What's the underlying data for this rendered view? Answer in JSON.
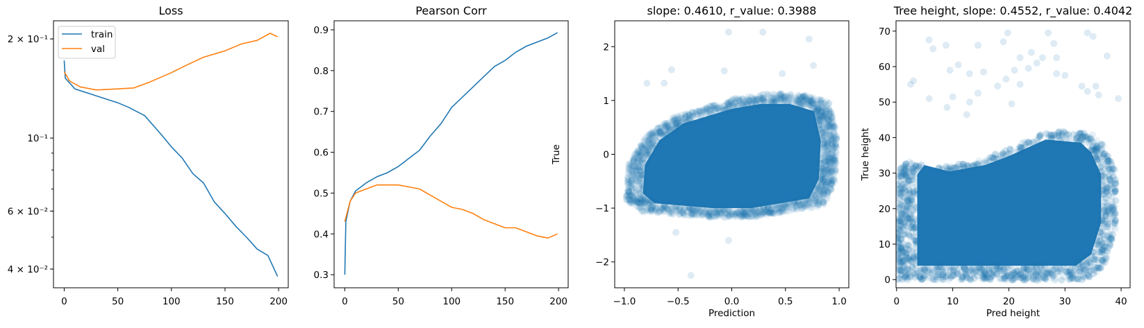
{
  "colors": {
    "train": "#1f77b4",
    "val": "#ff7f0e",
    "scatter": "#1f77b4"
  },
  "chart_data": [
    {
      "type": "line",
      "title": "Loss",
      "xlabel": "",
      "ylabel": "",
      "yscale": "log",
      "xlim": [
        -10,
        209
      ],
      "ylim": [
        0.0351,
        0.227
      ],
      "xticks": [
        0,
        50,
        100,
        150,
        200
      ],
      "xtick_labels": [
        "0",
        "50",
        "100",
        "150",
        "200"
      ],
      "yticks": [
        0.2,
        0.1,
        0.06,
        0.04
      ],
      "ytick_labels": [
        "2 × 10⁻¹",
        "10⁻¹",
        "6 × 10⁻²",
        "4 × 10⁻²"
      ],
      "yminor": [
        0.04,
        0.05,
        0.06,
        0.07,
        0.08,
        0.09,
        0.2
      ],
      "legend": {
        "position": "upper-left",
        "entries": [
          "train",
          "val"
        ]
      },
      "series": [
        {
          "name": "train",
          "x": [
            0,
            1,
            10,
            25,
            50,
            60,
            75,
            90,
            100,
            110,
            120,
            130,
            140,
            150,
            160,
            170,
            180,
            190,
            199
          ],
          "values": [
            0.172,
            0.152,
            0.141,
            0.136,
            0.128,
            0.124,
            0.117,
            0.103,
            0.094,
            0.087,
            0.078,
            0.073,
            0.064,
            0.059,
            0.054,
            0.05,
            0.046,
            0.044,
            0.038
          ]
        },
        {
          "name": "val",
          "x": [
            0,
            5,
            15,
            30,
            50,
            65,
            80,
            100,
            115,
            130,
            150,
            165,
            180,
            192,
            199
          ],
          "values": [
            0.159,
            0.149,
            0.143,
            0.14,
            0.141,
            0.142,
            0.148,
            0.158,
            0.167,
            0.176,
            0.184,
            0.193,
            0.198,
            0.208,
            0.203
          ]
        }
      ]
    },
    {
      "type": "line",
      "title": "Pearson Corr",
      "xlabel": "",
      "ylabel": "",
      "xlim": [
        -10,
        209
      ],
      "ylim": [
        0.268,
        0.922
      ],
      "xticks": [
        0,
        50,
        100,
        150,
        200
      ],
      "xtick_labels": [
        "0",
        "50",
        "100",
        "150",
        "200"
      ],
      "yticks": [
        0.3,
        0.4,
        0.5,
        0.6,
        0.7,
        0.8,
        0.9
      ],
      "ytick_labels": [
        "0.3",
        "0.4",
        "0.5",
        "0.6",
        "0.7",
        "0.8",
        "0.9"
      ],
      "series": [
        {
          "name": "train",
          "x": [
            0,
            1,
            5,
            10,
            20,
            30,
            40,
            50,
            60,
            70,
            80,
            90,
            100,
            110,
            120,
            130,
            140,
            150,
            160,
            170,
            180,
            190,
            199
          ],
          "values": [
            0.3,
            0.43,
            0.48,
            0.505,
            0.525,
            0.54,
            0.55,
            0.565,
            0.585,
            0.605,
            0.64,
            0.67,
            0.71,
            0.735,
            0.76,
            0.785,
            0.81,
            0.825,
            0.845,
            0.86,
            0.87,
            0.88,
            0.893
          ]
        },
        {
          "name": "val",
          "x": [
            0,
            5,
            10,
            20,
            30,
            40,
            50,
            60,
            70,
            80,
            90,
            100,
            110,
            120,
            130,
            140,
            150,
            160,
            170,
            180,
            190,
            199
          ],
          "values": [
            0.43,
            0.48,
            0.5,
            0.51,
            0.52,
            0.52,
            0.52,
            0.515,
            0.51,
            0.495,
            0.48,
            0.465,
            0.46,
            0.45,
            0.435,
            0.425,
            0.415,
            0.415,
            0.405,
            0.395,
            0.39,
            0.4
          ]
        }
      ]
    },
    {
      "type": "scatter",
      "title": "slope: 0.4610, r_value: 0.3988",
      "xlabel": "Prediction",
      "ylabel": "True",
      "slope": 0.461,
      "r_value": 0.3988,
      "xlim": [
        -1.09,
        1.09
      ],
      "ylim": [
        -2.48,
        2.48
      ],
      "xticks": [
        -1.0,
        -0.5,
        0.0,
        0.5,
        1.0
      ],
      "xtick_labels": [
        "−1.0",
        "−0.5",
        "0.0",
        "0.5",
        "1.0"
      ],
      "yticks": [
        -2,
        -1,
        0,
        1,
        2
      ],
      "ytick_labels": [
        "−2",
        "−1",
        "0",
        "1",
        "2"
      ],
      "alpha": 0.1,
      "dense_region": [
        [
          -0.92,
          -0.8
        ],
        [
          -0.9,
          -0.2
        ],
        [
          -0.75,
          0.3
        ],
        [
          -0.5,
          0.65
        ],
        [
          -0.25,
          0.8
        ],
        [
          0,
          0.95
        ],
        [
          0.3,
          1.05
        ],
        [
          0.6,
          1.05
        ],
        [
          0.85,
          0.9
        ],
        [
          0.92,
          0.3
        ],
        [
          0.9,
          -0.5
        ],
        [
          0.8,
          -0.9
        ],
        [
          0.5,
          -1.0
        ],
        [
          0.2,
          -1.1
        ],
        [
          -0.2,
          -1.1
        ],
        [
          -0.5,
          -1.05
        ],
        [
          -0.8,
          -1.0
        ]
      ],
      "outliers": [
        [
          -0.03,
          2.27
        ],
        [
          0.29,
          2.27
        ],
        [
          0.72,
          2.14
        ],
        [
          0.76,
          1.65
        ],
        [
          -0.07,
          1.55
        ],
        [
          -0.56,
          1.57
        ],
        [
          -0.38,
          -2.25
        ],
        [
          -0.03,
          -1.6
        ],
        [
          -0.52,
          -1.45
        ],
        [
          -0.79,
          1.32
        ],
        [
          -0.63,
          1.32
        ],
        [
          0.47,
          1.5
        ]
      ]
    },
    {
      "type": "scatter",
      "title": "Tree height, slope: 0.4552, r_value: 0.4042",
      "xlabel": "Pred height",
      "ylabel": "True height",
      "slope": 0.4552,
      "r_value": 0.4042,
      "xlim": [
        -0.1,
        41.6
      ],
      "ylim": [
        -2.3,
        72.9
      ],
      "xticks": [
        0,
        10,
        20,
        30,
        40
      ],
      "xtick_labels": [
        "0",
        "10",
        "20",
        "30",
        "40"
      ],
      "yticks": [
        0,
        10,
        20,
        30,
        40,
        50,
        60,
        70
      ],
      "ytick_labels": [
        "0",
        "10",
        "20",
        "30",
        "40",
        "50",
        "60",
        "70"
      ],
      "alpha": 0.1,
      "dense_region": [
        [
          1.6,
          1.5
        ],
        [
          1.6,
          30
        ],
        [
          3,
          33
        ],
        [
          8,
          31
        ],
        [
          15,
          33
        ],
        [
          20,
          36
        ],
        [
          27,
          41
        ],
        [
          34,
          40
        ],
        [
          36,
          37
        ],
        [
          38,
          30
        ],
        [
          38,
          15
        ],
        [
          36,
          5
        ],
        [
          33,
          1.5
        ]
      ],
      "outliers": [
        [
          2.5,
          55
        ],
        [
          3,
          56
        ],
        [
          5.8,
          67.5
        ],
        [
          6.5,
          65
        ],
        [
          8.8,
          66
        ],
        [
          14.5,
          66
        ],
        [
          19,
          67
        ],
        [
          19.8,
          69.5
        ],
        [
          27,
          69.5
        ],
        [
          28,
          66.5
        ],
        [
          34,
          69.5
        ],
        [
          35,
          68.5
        ],
        [
          37.5,
          63
        ],
        [
          11,
          60.5
        ],
        [
          9.5,
          59
        ],
        [
          13,
          58
        ],
        [
          15.5,
          58.5
        ],
        [
          22,
          62.5
        ],
        [
          24,
          64
        ],
        [
          26,
          62.5
        ],
        [
          28.5,
          62.5
        ],
        [
          21,
          59
        ],
        [
          23.5,
          59.5
        ],
        [
          25,
          61
        ],
        [
          28.5,
          58
        ],
        [
          30,
          57.5
        ],
        [
          39.5,
          51
        ],
        [
          5.8,
          51
        ],
        [
          10,
          51.5
        ],
        [
          9,
          48.5
        ],
        [
          13,
          50
        ],
        [
          14.5,
          52.5
        ],
        [
          20.5,
          49.5
        ],
        [
          22,
          55
        ],
        [
          33,
          54.5
        ],
        [
          35.5,
          54.5
        ],
        [
          34,
          53
        ],
        [
          36,
          52
        ],
        [
          12.5,
          46.5
        ],
        [
          18,
          54.5
        ],
        [
          19.5,
          56.5
        ]
      ]
    }
  ]
}
